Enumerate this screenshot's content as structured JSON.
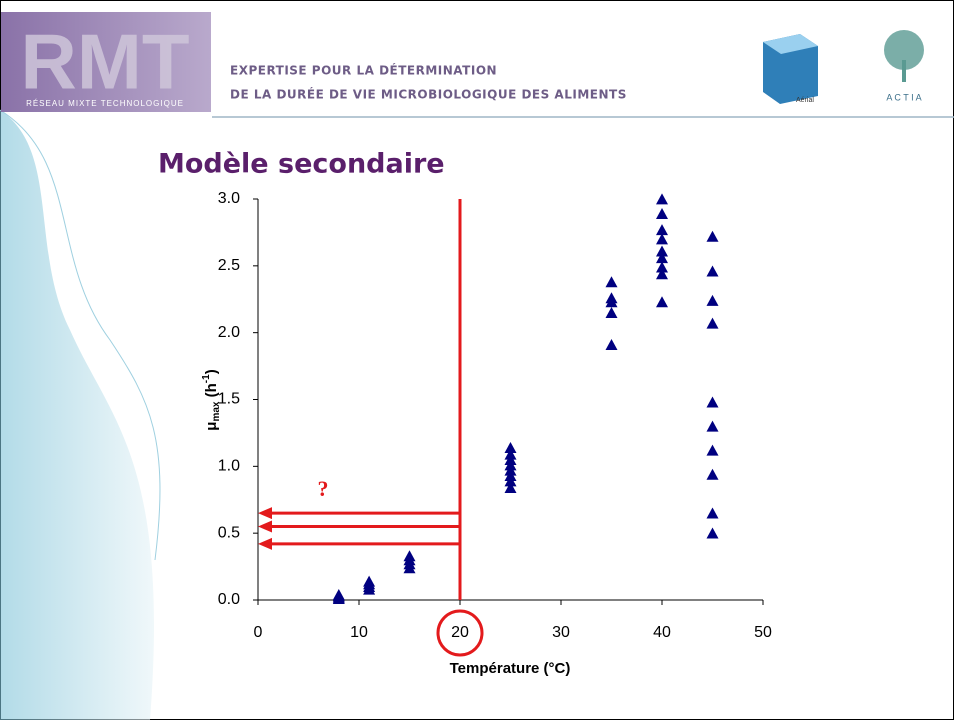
{
  "header": {
    "logo": "RMT",
    "logo_caption": "RÉSEAU MIXTE TECHNOLOGIQUE",
    "line1": "EXPERTISE POUR LA DÉTERMINATION",
    "line2": "DE LA DURÉE DE VIE  MICROBIOLOGIQUE DES ALIMENTS",
    "aerial": "Aérial",
    "actia": "A C T I A"
  },
  "slide_title": "Modèle secondaire",
  "chart_data": {
    "type": "scatter",
    "x_label": "Température (°C)",
    "y_label": {
      "symbol": "μ",
      "sub": "max",
      "unit_open": " (h",
      "sup": "-1",
      "unit_close": ")"
    },
    "xlim": [
      0,
      50
    ],
    "xticks": [
      0,
      10,
      20,
      30,
      40,
      50
    ],
    "ylim": [
      0,
      3
    ],
    "yticks": [
      {
        "value": 0,
        "label": "0.0"
      },
      {
        "value": 0.5,
        "label": "0.5"
      },
      {
        "value": 1,
        "label": "1.0"
      },
      {
        "value": 1.5,
        "label": "1.5"
      },
      {
        "value": 2,
        "label": "2.0"
      },
      {
        "value": 2.5,
        "label": "2.5"
      },
      {
        "value": 3,
        "label": "3.0"
      }
    ],
    "color": "#000080",
    "x": [
      8,
      8,
      8,
      8,
      11,
      11,
      11,
      11,
      15,
      15,
      15,
      15,
      25,
      25,
      25,
      25,
      25,
      25,
      25,
      25,
      35,
      35,
      35,
      35,
      35,
      40,
      40,
      40,
      40,
      40,
      40,
      40,
      40,
      40,
      45,
      45,
      45,
      45,
      45,
      45,
      45,
      45,
      45,
      45
    ],
    "values": [
      0,
      0.01,
      0.02,
      0.03,
      0.07,
      0.09,
      0.11,
      0.13,
      0.23,
      0.26,
      0.29,
      0.32,
      0.83,
      0.88,
      0.92,
      0.96,
      1.0,
      1.04,
      1.08,
      1.13,
      1.9,
      2.14,
      2.22,
      2.25,
      2.37,
      2.22,
      2.43,
      2.48,
      2.55,
      2.6,
      2.69,
      2.76,
      2.88,
      2.99,
      2.71,
      2.45,
      2.23,
      2.06,
      1.47,
      1.29,
      1.11,
      0.93,
      0.64,
      0.49
    ],
    "marker_x": 20,
    "arrows_y": [
      0.65,
      0.55,
      0.42
    ],
    "annotation": "?",
    "annotation_color": "#e31a1c"
  }
}
